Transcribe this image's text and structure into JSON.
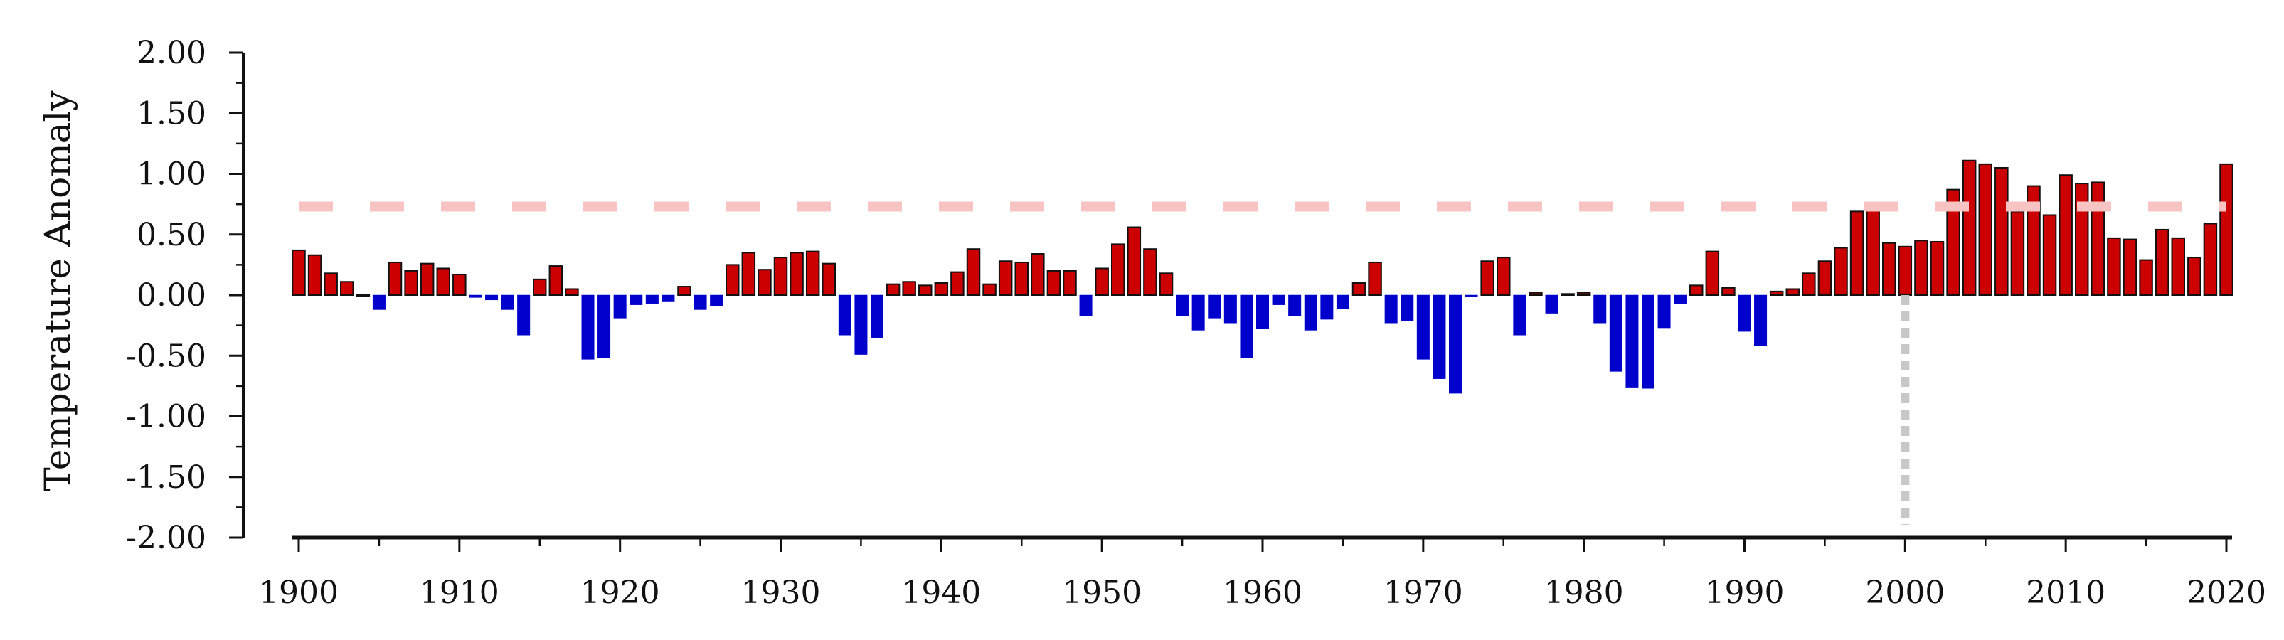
{
  "chart_data": {
    "type": "bar",
    "title": "",
    "xlabel": "",
    "ylabel": "Temperature Anomaly",
    "xlim": [
      1899.2,
      2020.8
    ],
    "ylim": [
      -2.0,
      2.0
    ],
    "x_ticks": [
      "1900",
      "1910",
      "1920",
      "1930",
      "1940",
      "1950",
      "1960",
      "1970",
      "1980",
      "1990",
      "2000",
      "2010",
      "2020"
    ],
    "y_ticks": [
      "2.00",
      "1.50",
      "1.00",
      "0.50",
      "0.00",
      "-0.50",
      "-1.00",
      "-1.50",
      "-2.00"
    ],
    "grid": false,
    "legend": "none",
    "colors": {
      "positive": "#cc0000",
      "negative": "#0000cc",
      "reference_line": "#f7c3c3",
      "marker_line": "#c8c8c8"
    },
    "reference_line": {
      "y": 0.73,
      "style": "dashed"
    },
    "marker_line": {
      "x": 2000,
      "style": "dotted"
    },
    "years": [
      1900,
      1901,
      1902,
      1903,
      1904,
      1905,
      1906,
      1907,
      1908,
      1909,
      1910,
      1911,
      1912,
      1913,
      1914,
      1915,
      1916,
      1917,
      1918,
      1919,
      1920,
      1921,
      1922,
      1923,
      1924,
      1925,
      1926,
      1927,
      1928,
      1929,
      1930,
      1931,
      1932,
      1933,
      1934,
      1935,
      1936,
      1937,
      1938,
      1939,
      1940,
      1941,
      1942,
      1943,
      1944,
      1945,
      1946,
      1947,
      1948,
      1949,
      1950,
      1951,
      1952,
      1953,
      1954,
      1955,
      1956,
      1957,
      1958,
      1959,
      1960,
      1961,
      1962,
      1963,
      1964,
      1965,
      1966,
      1967,
      1968,
      1969,
      1970,
      1971,
      1972,
      1973,
      1974,
      1975,
      1976,
      1977,
      1978,
      1979,
      1980,
      1981,
      1982,
      1983,
      1984,
      1985,
      1986,
      1987,
      1988,
      1989,
      1990,
      1991,
      1992,
      1993,
      1994,
      1995,
      1996,
      1997,
      1998,
      1999,
      2000,
      2001,
      2002,
      2003,
      2004,
      2005,
      2006,
      2007,
      2008,
      2009,
      2010,
      2011,
      2012,
      2013,
      2014,
      2015,
      2016,
      2017,
      2018,
      2019,
      2020
    ],
    "values": [
      0.37,
      0.33,
      0.18,
      0.11,
      0.0,
      -0.12,
      0.27,
      0.2,
      0.26,
      0.22,
      0.17,
      -0.02,
      -0.04,
      -0.12,
      -0.33,
      0.13,
      0.24,
      0.05,
      -0.53,
      -0.52,
      -0.19,
      -0.08,
      -0.07,
      -0.05,
      0.07,
      -0.12,
      -0.09,
      0.25,
      0.35,
      0.21,
      0.31,
      0.35,
      0.36,
      0.26,
      -0.33,
      -0.49,
      -0.35,
      0.09,
      0.11,
      0.08,
      0.1,
      0.19,
      0.38,
      0.09,
      0.28,
      0.27,
      0.34,
      0.2,
      0.2,
      -0.17,
      0.22,
      0.42,
      0.56,
      0.38,
      0.18,
      -0.17,
      -0.29,
      -0.19,
      -0.23,
      -0.52,
      -0.28,
      -0.08,
      -0.17,
      -0.29,
      -0.2,
      -0.11,
      0.1,
      0.27,
      -0.23,
      -0.21,
      -0.53,
      -0.69,
      -0.81,
      -0.01,
      0.28,
      0.31,
      -0.33,
      0.02,
      -0.15,
      0.01,
      0.02,
      -0.23,
      -0.63,
      -0.76,
      -0.77,
      -0.27,
      -0.07,
      0.08,
      0.36,
      0.06,
      -0.3,
      -0.42,
      0.03,
      0.05,
      0.18,
      0.28,
      0.39,
      0.69,
      0.74,
      0.43,
      0.4,
      0.45,
      0.44,
      0.87,
      1.11,
      1.08,
      1.05,
      0.69,
      0.9,
      0.66,
      0.99,
      0.92,
      0.93,
      0.47,
      0.46,
      0.29,
      0.54,
      0.47,
      0.31,
      0.59,
      1.08
    ]
  }
}
